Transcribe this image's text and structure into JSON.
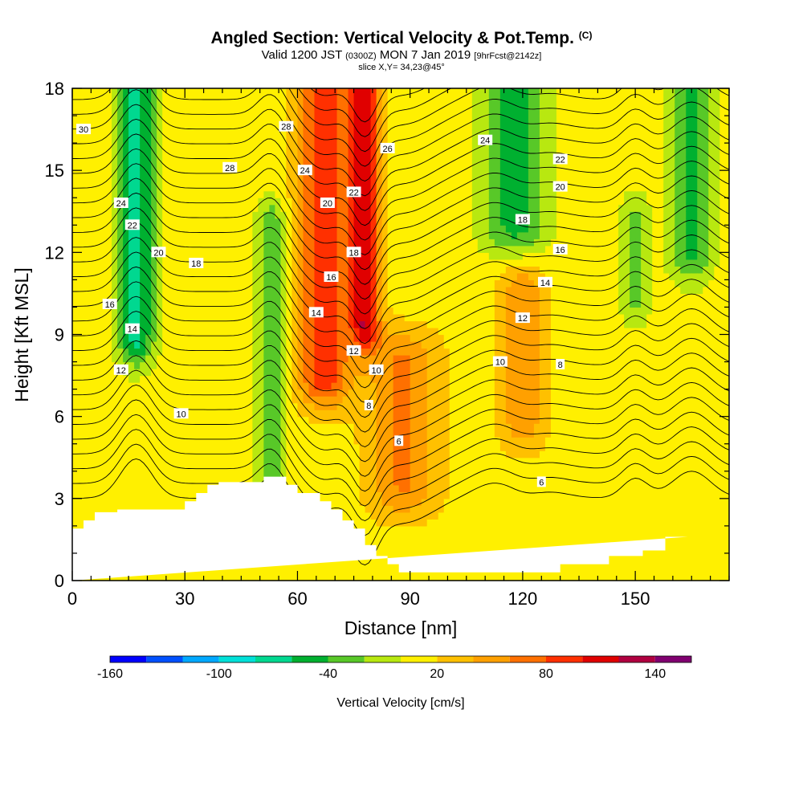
{
  "header": {
    "title": "Angled Section: Vertical Velocity & Pot.Temp.",
    "title_unit": "(C)",
    "valid_prefix": "Valid 1200 JST",
    "valid_utc": "(0300Z)",
    "valid_date": "MON 7 Jan 2019",
    "forecast": "[9hrFcst@2142z]",
    "slice": "slice X,Y= 34,23@45°"
  },
  "chart_data": {
    "type": "heatmap",
    "xlabel": "Distance [nm]",
    "ylabel": "Height [Kft MSL]",
    "xlim": [
      0,
      175
    ],
    "ylim": [
      0,
      18
    ],
    "x_ticks": [
      0,
      30,
      60,
      90,
      120,
      150
    ],
    "y_ticks": [
      0,
      3,
      6,
      9,
      12,
      15,
      18
    ],
    "terrain": {
      "x": [
        0,
        3,
        3,
        6,
        6,
        9,
        9,
        12,
        12,
        15,
        15,
        30,
        30,
        33,
        33,
        36,
        36,
        39,
        39,
        51,
        51,
        57,
        57,
        60,
        60,
        66,
        66,
        69,
        69,
        72,
        72,
        75,
        75,
        78,
        78,
        81,
        81,
        84,
        84,
        87,
        87,
        90,
        90,
        120,
        120,
        130,
        130,
        143,
        143,
        152,
        152,
        158,
        158,
        164,
        164,
        175
      ],
      "y": [
        1.9,
        1.9,
        2.2,
        2.2,
        2.5,
        2.5,
        2.5,
        2.5,
        2.6,
        2.6,
        2.6,
        2.6,
        2.9,
        2.9,
        3.2,
        3.2,
        3.5,
        3.5,
        3.6,
        3.6,
        3.8,
        3.8,
        3.5,
        3.5,
        3.2,
        3.2,
        2.9,
        2.9,
        2.6,
        2.6,
        2.2,
        2.2,
        1.9,
        1.9,
        1.3,
        1.3,
        0.9,
        0.9,
        0.6,
        0.6,
        0.3,
        0.3,
        0.3,
        0.3,
        0.3,
        0.3,
        0.6,
        0.6,
        0.9,
        0.9,
        1.1,
        1.1,
        1.6,
        1.6,
        1.6
      ]
    },
    "velocity_features": [
      {
        "kind": "updraft",
        "x": 67,
        "y_min": 7.5,
        "y_max": 18,
        "half_width_nm": 7,
        "peak": 80
      },
      {
        "kind": "updraft",
        "x": 78,
        "y_min": 9.5,
        "y_max": 18,
        "half_width_nm": 4,
        "peak": 100
      },
      {
        "kind": "updraft",
        "x": 88,
        "y_min": 3.5,
        "y_max": 8,
        "half_width_nm": 9,
        "peak": 50
      },
      {
        "kind": "updraft",
        "x": 120,
        "y_min": 6,
        "y_max": 10.5,
        "half_width_nm": 6,
        "peak": 45
      },
      {
        "kind": "downdraft",
        "x": 17,
        "y_min": 9,
        "y_max": 18,
        "half_width_nm": 5,
        "peak": -80
      },
      {
        "kind": "downdraft",
        "x": 53,
        "y_min": 3.8,
        "y_max": 13,
        "half_width_nm": 4,
        "peak": -45
      },
      {
        "kind": "downdraft",
        "x": 118,
        "y_min": 13,
        "y_max": 18,
        "half_width_nm": 9,
        "peak": -60
      },
      {
        "kind": "downdraft",
        "x": 165,
        "y_min": 12,
        "y_max": 18,
        "half_width_nm": 6,
        "peak": -55
      },
      {
        "kind": "downdraft",
        "x": 150,
        "y_min": 10.5,
        "y_max": 13,
        "half_width_nm": 4,
        "peak": -40
      }
    ],
    "theta_labels": [
      {
        "text": "30",
        "x": 3,
        "y": 16.5
      },
      {
        "text": "28",
        "x": 42,
        "y": 15.1
      },
      {
        "text": "28",
        "x": 57,
        "y": 16.6
      },
      {
        "text": "26",
        "x": 84,
        "y": 15.8
      },
      {
        "text": "24",
        "x": 13,
        "y": 13.8
      },
      {
        "text": "24",
        "x": 62,
        "y": 15.0
      },
      {
        "text": "24",
        "x": 110,
        "y": 16.1
      },
      {
        "text": "22",
        "x": 16,
        "y": 13.0
      },
      {
        "text": "22",
        "x": 75,
        "y": 14.2
      },
      {
        "text": "22",
        "x": 130,
        "y": 15.4
      },
      {
        "text": "20",
        "x": 23,
        "y": 12.0
      },
      {
        "text": "20",
        "x": 68,
        "y": 13.8
      },
      {
        "text": "20",
        "x": 130,
        "y": 14.4
      },
      {
        "text": "18",
        "x": 33,
        "y": 11.6
      },
      {
        "text": "18",
        "x": 75,
        "y": 12.0
      },
      {
        "text": "18",
        "x": 120,
        "y": 13.2
      },
      {
        "text": "16",
        "x": 10,
        "y": 10.1
      },
      {
        "text": "16",
        "x": 69,
        "y": 11.1
      },
      {
        "text": "16",
        "x": 130,
        "y": 12.1
      },
      {
        "text": "14",
        "x": 16,
        "y": 9.2
      },
      {
        "text": "14",
        "x": 65,
        "y": 9.8
      },
      {
        "text": "14",
        "x": 126,
        "y": 10.9
      },
      {
        "text": "12",
        "x": 13,
        "y": 7.7
      },
      {
        "text": "12",
        "x": 75,
        "y": 8.4
      },
      {
        "text": "12",
        "x": 120,
        "y": 9.6
      },
      {
        "text": "10",
        "x": 29,
        "y": 6.1
      },
      {
        "text": "10",
        "x": 81,
        "y": 7.7
      },
      {
        "text": "10",
        "x": 114,
        "y": 8.0
      },
      {
        "text": "8",
        "x": 79,
        "y": 6.4
      },
      {
        "text": "8",
        "x": 130,
        "y": 7.9
      },
      {
        "text": "6",
        "x": 87,
        "y": 5.1
      },
      {
        "text": "6",
        "x": 125,
        "y": 3.6
      }
    ],
    "colorbar": {
      "label": "Vertical Velocity [cm/s]",
      "levels": [
        -160,
        -140,
        -120,
        -100,
        -80,
        -60,
        -40,
        -20,
        0,
        20,
        40,
        60,
        80,
        100,
        120,
        140,
        160
      ],
      "tick_labels": [
        "-160",
        "-100",
        "-40",
        "20",
        "80",
        "140"
      ],
      "tick_values": [
        -160,
        -100,
        -40,
        20,
        80,
        140
      ],
      "colors": [
        "#0000ff",
        "#0050ff",
        "#00a8ff",
        "#00e0d8",
        "#00d890",
        "#00b030",
        "#58c828",
        "#b8e810",
        "#fff000",
        "#ffc000",
        "#ffa000",
        "#ff7000",
        "#ff3000",
        "#e00000",
        "#b00040",
        "#800070"
      ]
    }
  }
}
